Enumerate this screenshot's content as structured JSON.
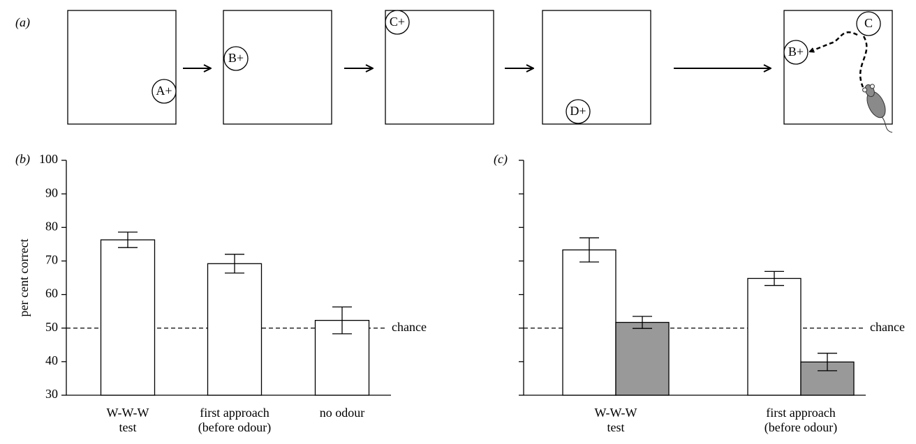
{
  "panel_a": {
    "label": "(a)",
    "boxes": [
      {
        "circles": [
          "A+"
        ]
      },
      {
        "circles": [
          "B+"
        ]
      },
      {
        "circles": [
          "C+"
        ]
      },
      {
        "circles": [
          "D+"
        ]
      },
      {
        "circles": [
          "C",
          "B+"
        ]
      }
    ]
  },
  "chart_data": [
    {
      "type": "bar",
      "panel_label": "(b)",
      "ylabel": "per cent correct",
      "categories": [
        "W-W-W\ntest",
        "first approach\n(before odour)",
        "no odour"
      ],
      "values": [
        76.3,
        69.2,
        52.3
      ],
      "errors": [
        2.3,
        2.8,
        4.0
      ],
      "color": "#ffffff",
      "ylim": [
        30,
        100
      ],
      "yticks": [
        30,
        40,
        50,
        60,
        70,
        80,
        90,
        100
      ],
      "tick_labels": true,
      "chance": {
        "value": 50,
        "label": "chance"
      }
    },
    {
      "type": "grouped_bar",
      "panel_label": "(c)",
      "categories": [
        "W-W-W\ntest",
        "first approach\n(before odour)"
      ],
      "series": [
        {
          "color": "#ffffff",
          "values": [
            73.3,
            64.8
          ],
          "errors": [
            3.6,
            2.1
          ]
        },
        {
          "color": "#999999",
          "values": [
            51.7,
            39.9
          ],
          "errors": [
            1.8,
            2.6
          ]
        }
      ],
      "ylim": [
        30,
        100
      ],
      "yticks": [
        30,
        40,
        50,
        60,
        70,
        80,
        90,
        100
      ],
      "tick_labels": false,
      "chance": {
        "value": 50,
        "label": "chance"
      }
    }
  ]
}
